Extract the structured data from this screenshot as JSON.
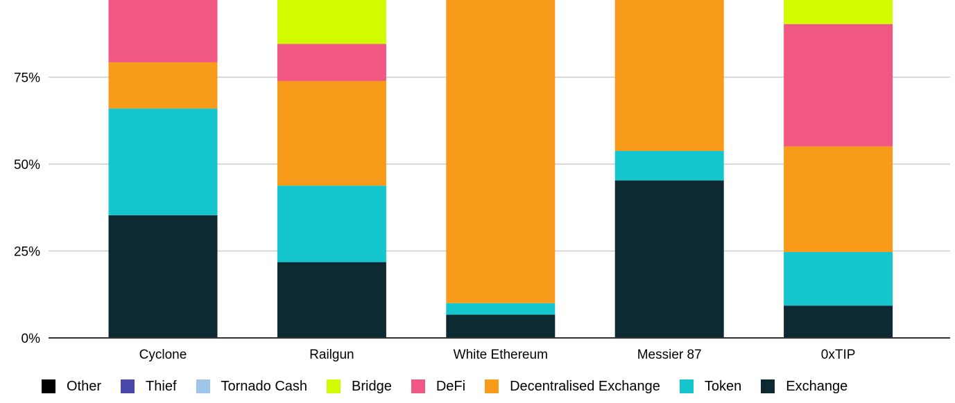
{
  "chart_data": {
    "type": "bar",
    "stacked": true,
    "categories": [
      "Cyclone",
      "Railgun",
      "White Ethereum",
      "Messier 87",
      "0xTIP"
    ],
    "ylim": [
      0,
      100
    ],
    "yticks": [
      0,
      25,
      50,
      75
    ],
    "ytick_labels": [
      "0%",
      "25%",
      "50%",
      "75%"
    ],
    "grid": true,
    "legend_position": "bottom",
    "series": [
      {
        "name": "Exchange",
        "color": "#0d2a33",
        "values": [
          35.3,
          21.8,
          6.7,
          45.3,
          9.3
        ]
      },
      {
        "name": "Token",
        "color": "#16c6cf",
        "values": [
          30.7,
          22.0,
          3.3,
          8.5,
          15.4
        ]
      },
      {
        "name": "Decentralised Exchange",
        "color": "#f99b1a",
        "values": [
          13.3,
          30.1,
          90.0,
          46.2,
          30.4
        ]
      },
      {
        "name": "DeFi",
        "color": "#f05782",
        "values": [
          20.7,
          10.7,
          0,
          0,
          35.2
        ]
      },
      {
        "name": "Bridge",
        "color": "#d2fb00",
        "values": [
          0,
          15.4,
          0,
          0,
          9.7
        ]
      },
      {
        "name": "Tornado Cash",
        "color": "#9fc5e8",
        "values": [
          0,
          0,
          0,
          0,
          0
        ]
      },
      {
        "name": "Thief",
        "color": "#4a48a8",
        "values": [
          0,
          0,
          0,
          0,
          0
        ]
      },
      {
        "name": "Other",
        "color": "#000000",
        "values": [
          0,
          0,
          0,
          0,
          0
        ]
      }
    ],
    "legend_order": [
      "Other",
      "Thief",
      "Tornado Cash",
      "Bridge",
      "DeFi",
      "Decentralised Exchange",
      "Token",
      "Exchange"
    ]
  }
}
